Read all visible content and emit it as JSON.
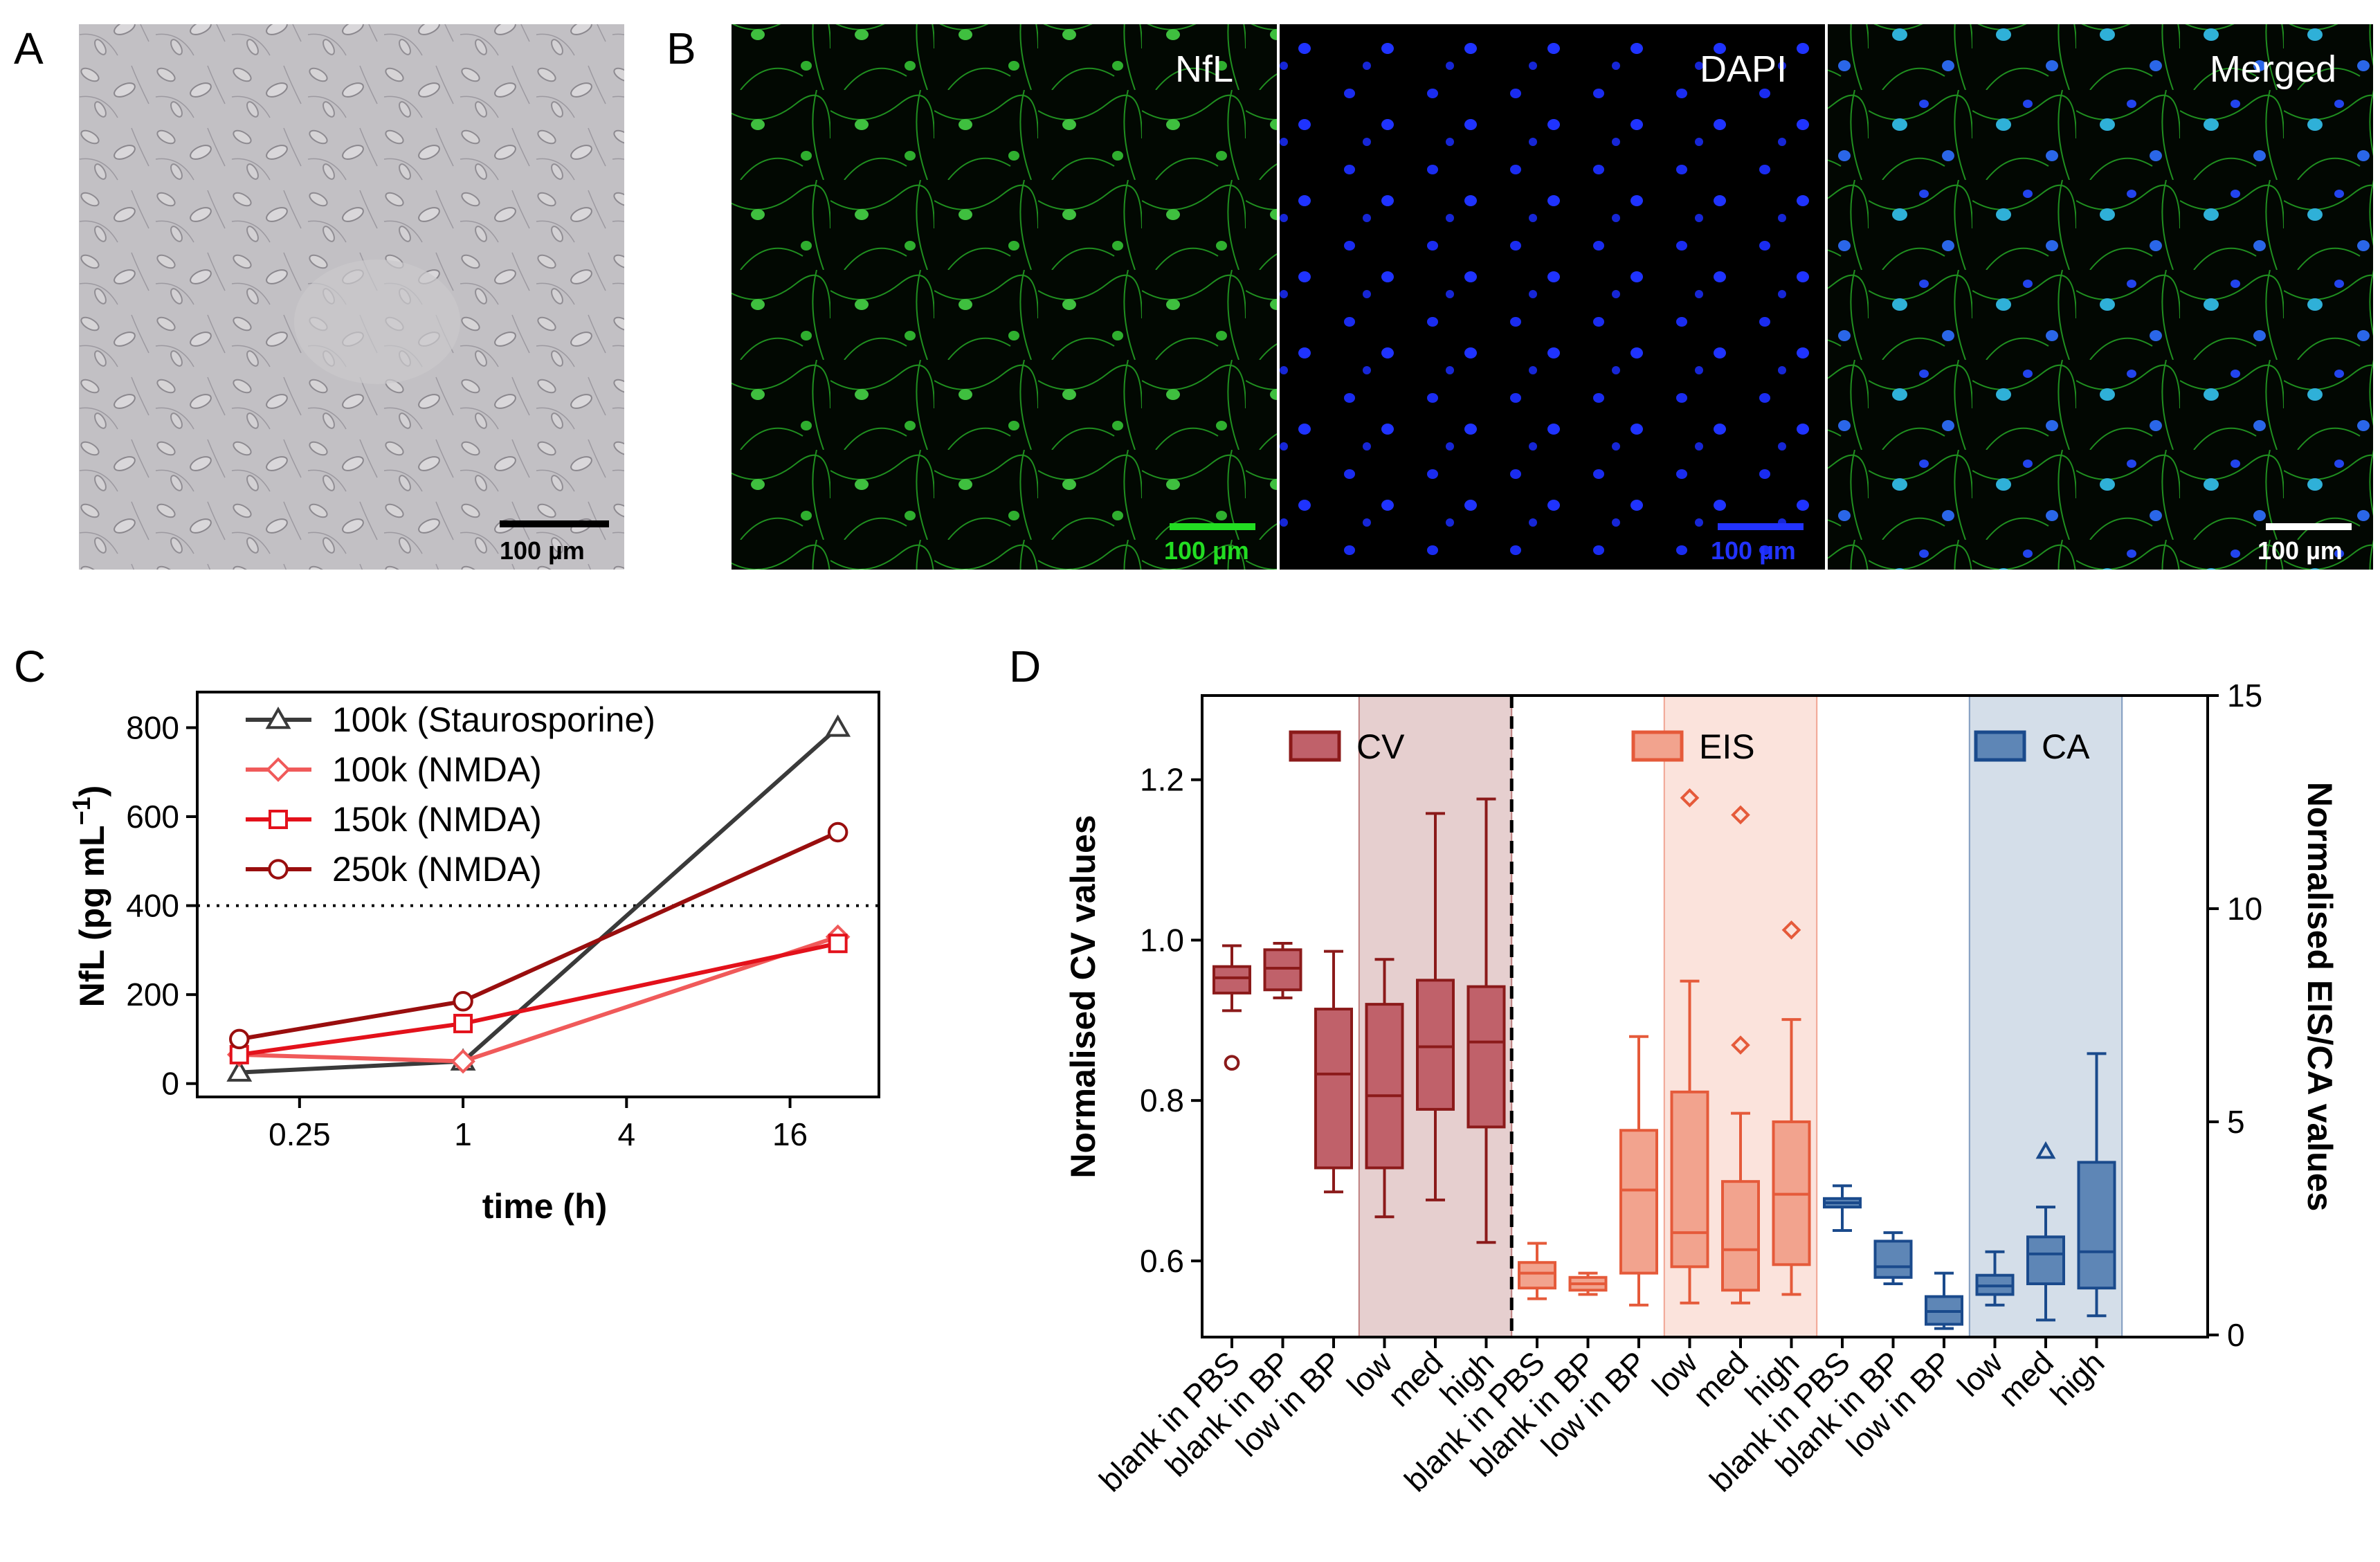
{
  "panels": {
    "a": {
      "letter": "A",
      "scale_bar": "100 µm"
    },
    "b": {
      "letter": "B",
      "images": [
        {
          "label": "NfL",
          "scale_bar": "100 µm",
          "scale_color": "#22dd22"
        },
        {
          "label": "DAPI",
          "scale_bar": "100 µm",
          "scale_color": "#2233ff"
        },
        {
          "label": "Merged",
          "scale_bar": "100 µm",
          "scale_color": "#ffffff"
        }
      ]
    },
    "c": {
      "letter": "C"
    },
    "d": {
      "letter": "D"
    }
  },
  "chart_data": [
    {
      "type": "line",
      "panel": "C",
      "xlabel": "time (h)",
      "ylabel": "NfL (pg mL",
      "ylabel_sup": "−1",
      "ylabel_close": ")",
      "x_scale": "log2",
      "x_ticks": [
        0.25,
        1,
        4,
        16
      ],
      "x_tick_labels": [
        "0.25",
        "1",
        "4",
        "16"
      ],
      "y_ticks": [
        0,
        200,
        400,
        600,
        800
      ],
      "ylim": [
        -30,
        880
      ],
      "reference_line": {
        "y": 400,
        "style": "dotted"
      },
      "legend_position": "top-left",
      "series": [
        {
          "name": "100k (Staurosporine)",
          "color": "#3a3a3a",
          "marker": "triangle",
          "x": [
            0.15,
            1,
            24
          ],
          "y": [
            25,
            50,
            800
          ]
        },
        {
          "name": "100k (NMDA)",
          "color": "#f05a5a",
          "marker": "diamond",
          "x": [
            0.15,
            1,
            24
          ],
          "y": [
            65,
            50,
            330
          ]
        },
        {
          "name": "150k (NMDA)",
          "color": "#e3111b",
          "marker": "square",
          "x": [
            0.15,
            1,
            24
          ],
          "y": [
            65,
            135,
            315
          ]
        },
        {
          "name": "250k (NMDA)",
          "color": "#990e0e",
          "marker": "circle",
          "x": [
            0.15,
            1,
            24
          ],
          "y": [
            100,
            185,
            565
          ]
        }
      ]
    },
    {
      "type": "box",
      "panel": "D",
      "ylabel_left": "Normalised CV values",
      "ylabel_right": "Normalised EIS/CA values",
      "y_left_ticks": [
        0.6,
        0.8,
        1.0,
        1.2
      ],
      "y_left_tick_labels": [
        "0.6",
        "0.8",
        "1.0",
        "1.2"
      ],
      "ylim_left": [
        0.505,
        1.305
      ],
      "y_right_ticks": [
        0,
        5,
        10,
        15
      ],
      "y_right_tick_labels": [
        "0",
        "5",
        "10",
        "15"
      ],
      "ylim_right": [
        -0.05,
        15
      ],
      "categories": [
        "blank in PBS",
        "blank in BP",
        "low in BP",
        "low",
        "med",
        "high",
        "blank in PBS",
        "blank in BP",
        "low in BP",
        "low",
        "med",
        "high",
        "blank in PBS",
        "blank in BP",
        "low in BP",
        "low",
        "med",
        "high"
      ],
      "groups": [
        {
          "name": "CV",
          "axis": "left",
          "color": "#8b1a1a",
          "fill": "#c0616a",
          "shade": "#e6cfcf",
          "boxes": [
            {
              "min": 0.912,
              "q1": 0.934,
              "median": 0.953,
              "q3": 0.967,
              "max": 0.993,
              "outliers": [
                0.847
              ],
              "outlier_marker": "circle"
            },
            {
              "min": 0.928,
              "q1": 0.938,
              "median": 0.965,
              "q3": 0.988,
              "max": 0.996,
              "outliers": []
            },
            {
              "min": 0.686,
              "q1": 0.716,
              "median": 0.833,
              "q3": 0.914,
              "max": 0.986,
              "outliers": []
            },
            {
              "min": 0.655,
              "q1": 0.716,
              "median": 0.806,
              "q3": 0.92,
              "max": 0.976,
              "outliers": []
            },
            {
              "min": 0.676,
              "q1": 0.789,
              "median": 0.867,
              "q3": 0.95,
              "max": 1.158,
              "outliers": []
            },
            {
              "min": 0.623,
              "q1": 0.767,
              "median": 0.873,
              "q3": 0.942,
              "max": 1.176,
              "outliers": []
            }
          ]
        },
        {
          "name": "EIS",
          "axis": "right",
          "color": "#e55a3a",
          "fill": "#f2a38e",
          "shade": "#fbe3dc",
          "boxes": [
            {
              "min": 0.85,
              "q1": 1.1,
              "median": 1.45,
              "q3": 1.7,
              "max": 2.15,
              "outliers": []
            },
            {
              "min": 0.95,
              "q1": 1.05,
              "median": 1.2,
              "q3": 1.35,
              "max": 1.45,
              "outliers": []
            },
            {
              "min": 0.7,
              "q1": 1.45,
              "median": 3.4,
              "q3": 4.8,
              "max": 7.0,
              "outliers": []
            },
            {
              "min": 0.75,
              "q1": 1.6,
              "median": 2.4,
              "q3": 5.7,
              "max": 8.3,
              "outliers": [
                12.6
              ],
              "outlier_marker": "diamond"
            },
            {
              "min": 0.75,
              "q1": 1.05,
              "median": 2.0,
              "q3": 3.6,
              "max": 5.2,
              "outliers": [
                12.2,
                6.8
              ],
              "outlier_marker": "diamond"
            },
            {
              "min": 0.95,
              "q1": 1.65,
              "median": 3.3,
              "q3": 5.0,
              "max": 7.4,
              "outliers": [
                9.5
              ],
              "outlier_marker": "diamond"
            }
          ]
        },
        {
          "name": "CA",
          "axis": "right",
          "color": "#1a4a8c",
          "fill": "#5e86b6",
          "shade": "#d4dee9",
          "boxes": [
            {
              "min": 2.45,
              "q1": 3.0,
              "median": 3.1,
              "q3": 3.2,
              "max": 3.5,
              "outliers": []
            },
            {
              "min": 1.2,
              "q1": 1.35,
              "median": 1.6,
              "q3": 2.2,
              "max": 2.4,
              "outliers": []
            },
            {
              "min": 0.15,
              "q1": 0.25,
              "median": 0.55,
              "q3": 0.9,
              "max": 1.45,
              "outliers": []
            },
            {
              "min": 0.7,
              "q1": 0.95,
              "median": 1.15,
              "q3": 1.4,
              "max": 1.95,
              "outliers": []
            },
            {
              "min": 0.35,
              "q1": 1.2,
              "median": 1.9,
              "q3": 2.3,
              "max": 3.0,
              "outliers": [
                4.3
              ],
              "outlier_marker": "triangle"
            },
            {
              "min": 0.45,
              "q1": 1.1,
              "median": 1.95,
              "q3": 4.05,
              "max": 6.6,
              "outliers": []
            }
          ]
        }
      ],
      "shaded_categories": [
        "low",
        "med",
        "high"
      ],
      "divider_after_group": "CV",
      "legend_position": "top, inside each group"
    }
  ]
}
